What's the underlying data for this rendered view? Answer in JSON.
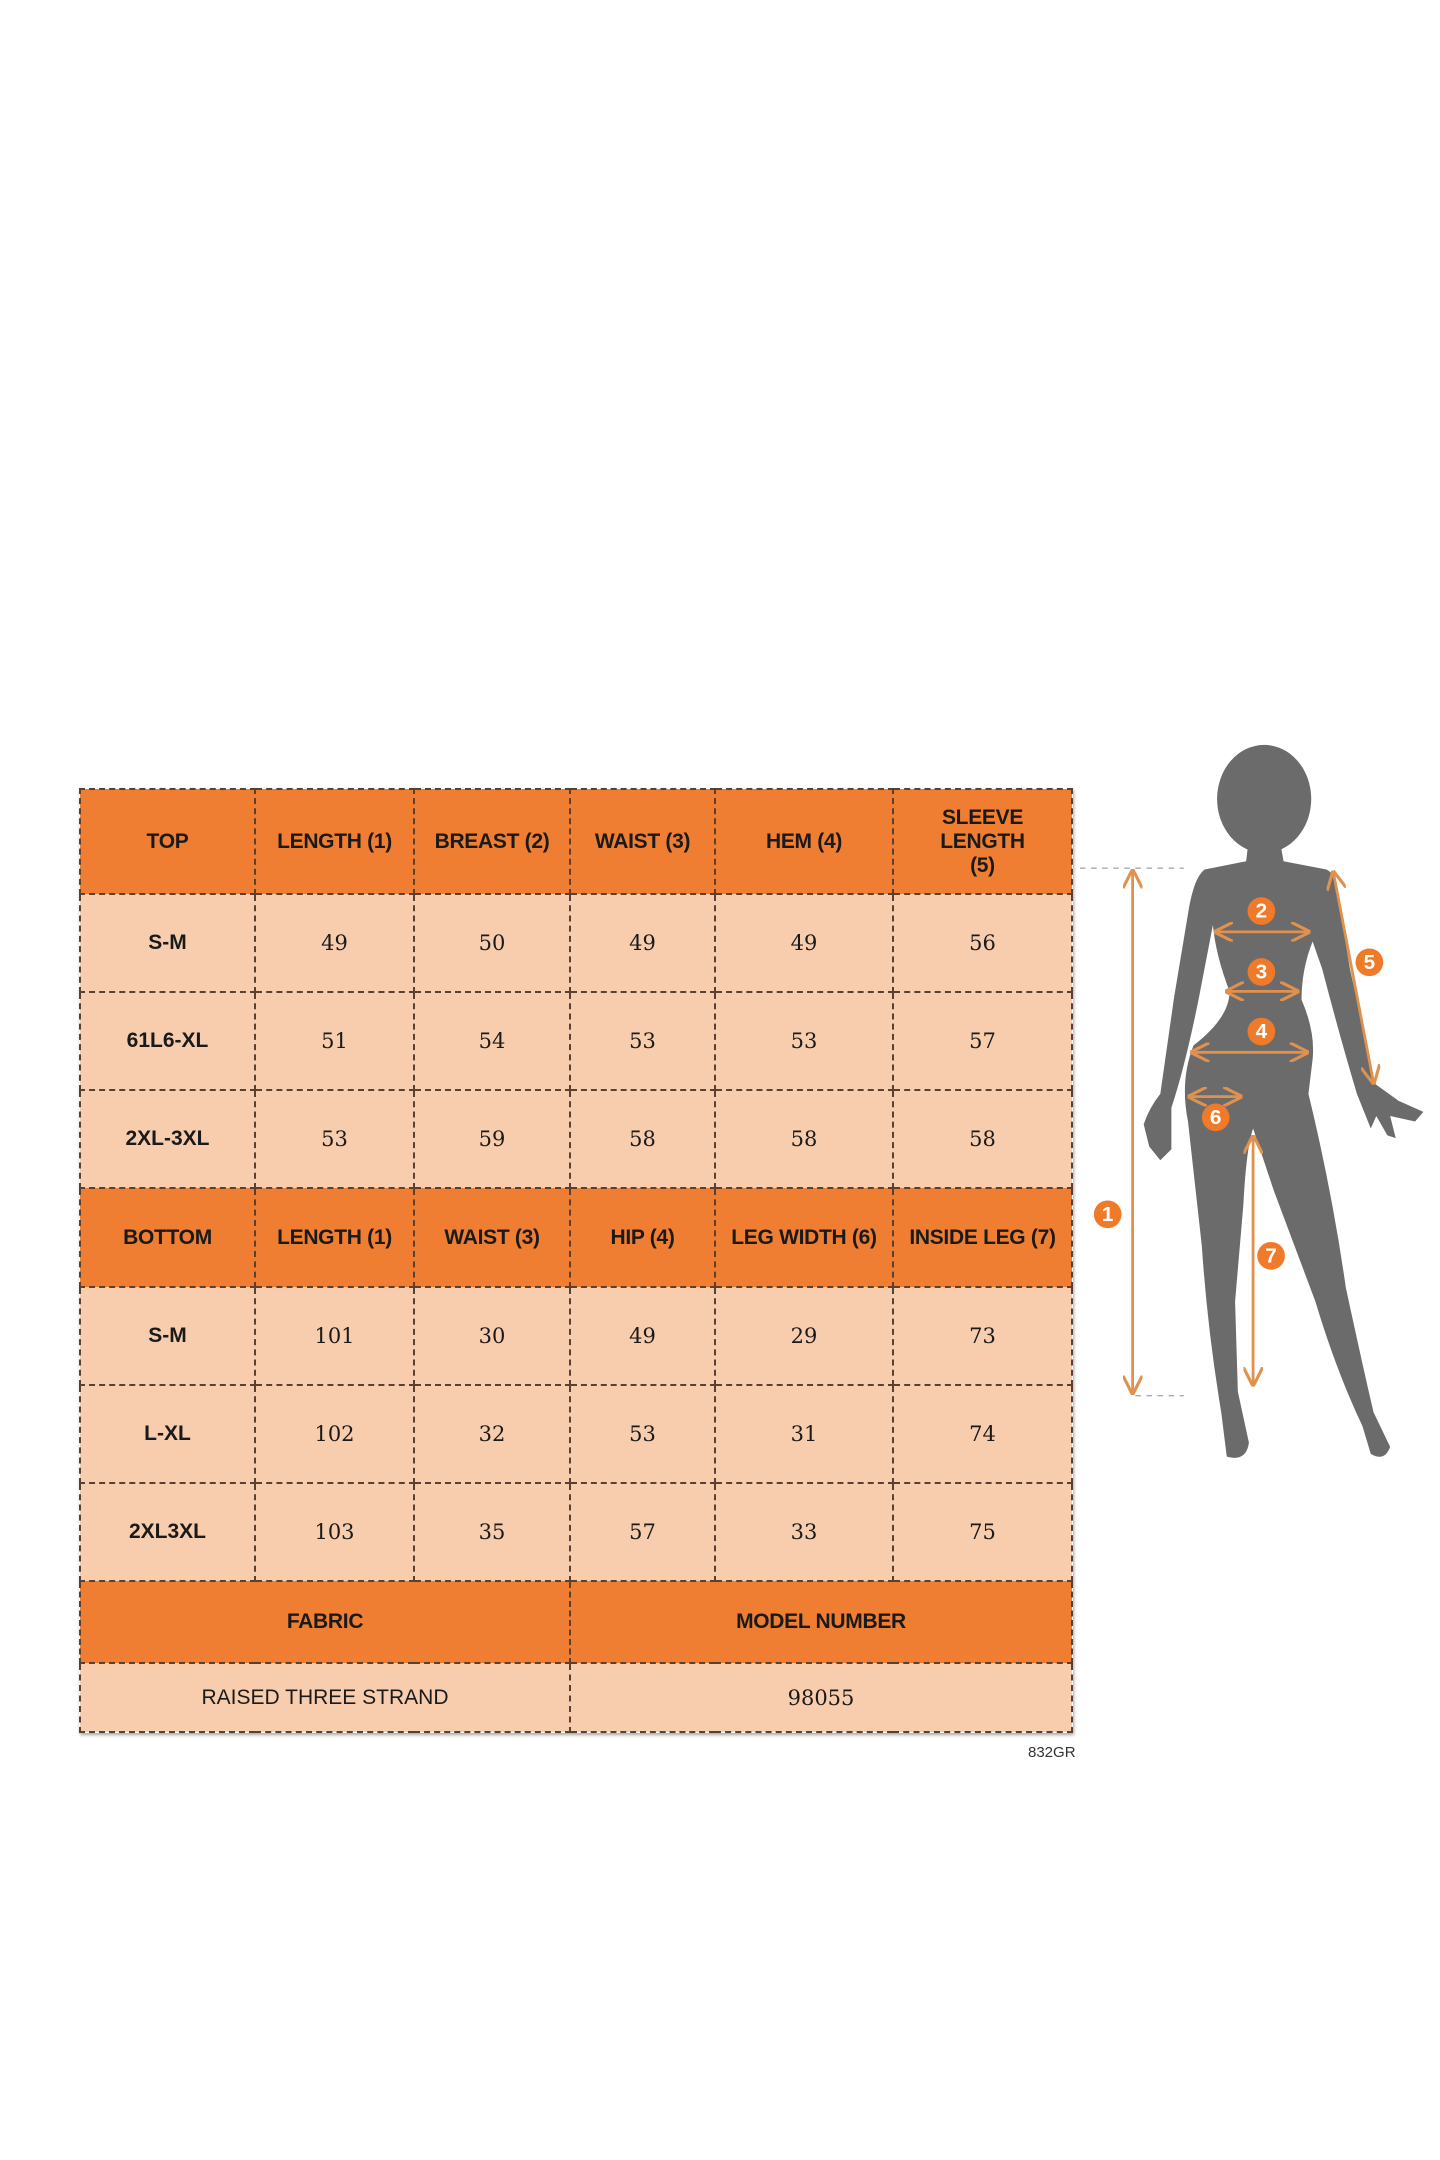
{
  "top": {
    "headers": [
      "TOP",
      "LENGTH (1)",
      "BREAST (2)",
      "WAIST (3)",
      "HEM (4)",
      "SLEEVE LENGTH (5)"
    ],
    "rows": [
      [
        "S-M",
        "49",
        "50",
        "49",
        "49",
        "56"
      ],
      [
        "61L6-XL",
        "51",
        "54",
        "53",
        "53",
        "57"
      ],
      [
        "2XL-3XL",
        "53",
        "59",
        "58",
        "58",
        "58"
      ]
    ]
  },
  "bottom": {
    "headers": [
      "BOTTOM",
      "LENGTH (1)",
      "WAIST (3)",
      "HIP (4)",
      "LEG WIDTH (6)",
      "INSIDE LEG (7)"
    ],
    "rows": [
      [
        "S-M",
        "101",
        "30",
        "49",
        "29",
        "73"
      ],
      [
        "L-XL",
        "102",
        "32",
        "53",
        "31",
        "74"
      ],
      [
        "2XL3XL",
        "103",
        "35",
        "57",
        "33",
        "75"
      ]
    ]
  },
  "footer": {
    "fabric_label": "FABRIC",
    "model_label": "MODEL NUMBER",
    "fabric_value": "RAISED THREE STRAND",
    "model_value": "98055"
  },
  "code": "832GR",
  "diagram": {
    "markers": [
      "1",
      "2",
      "3",
      "4",
      "5",
      "6",
      "7"
    ]
  },
  "colors": {
    "header": "#EF7E32",
    "cell": "#F8CDAE",
    "silhouette": "#6b6b6b",
    "arrow": "#E0914E",
    "badge": "#EE7A2A"
  }
}
